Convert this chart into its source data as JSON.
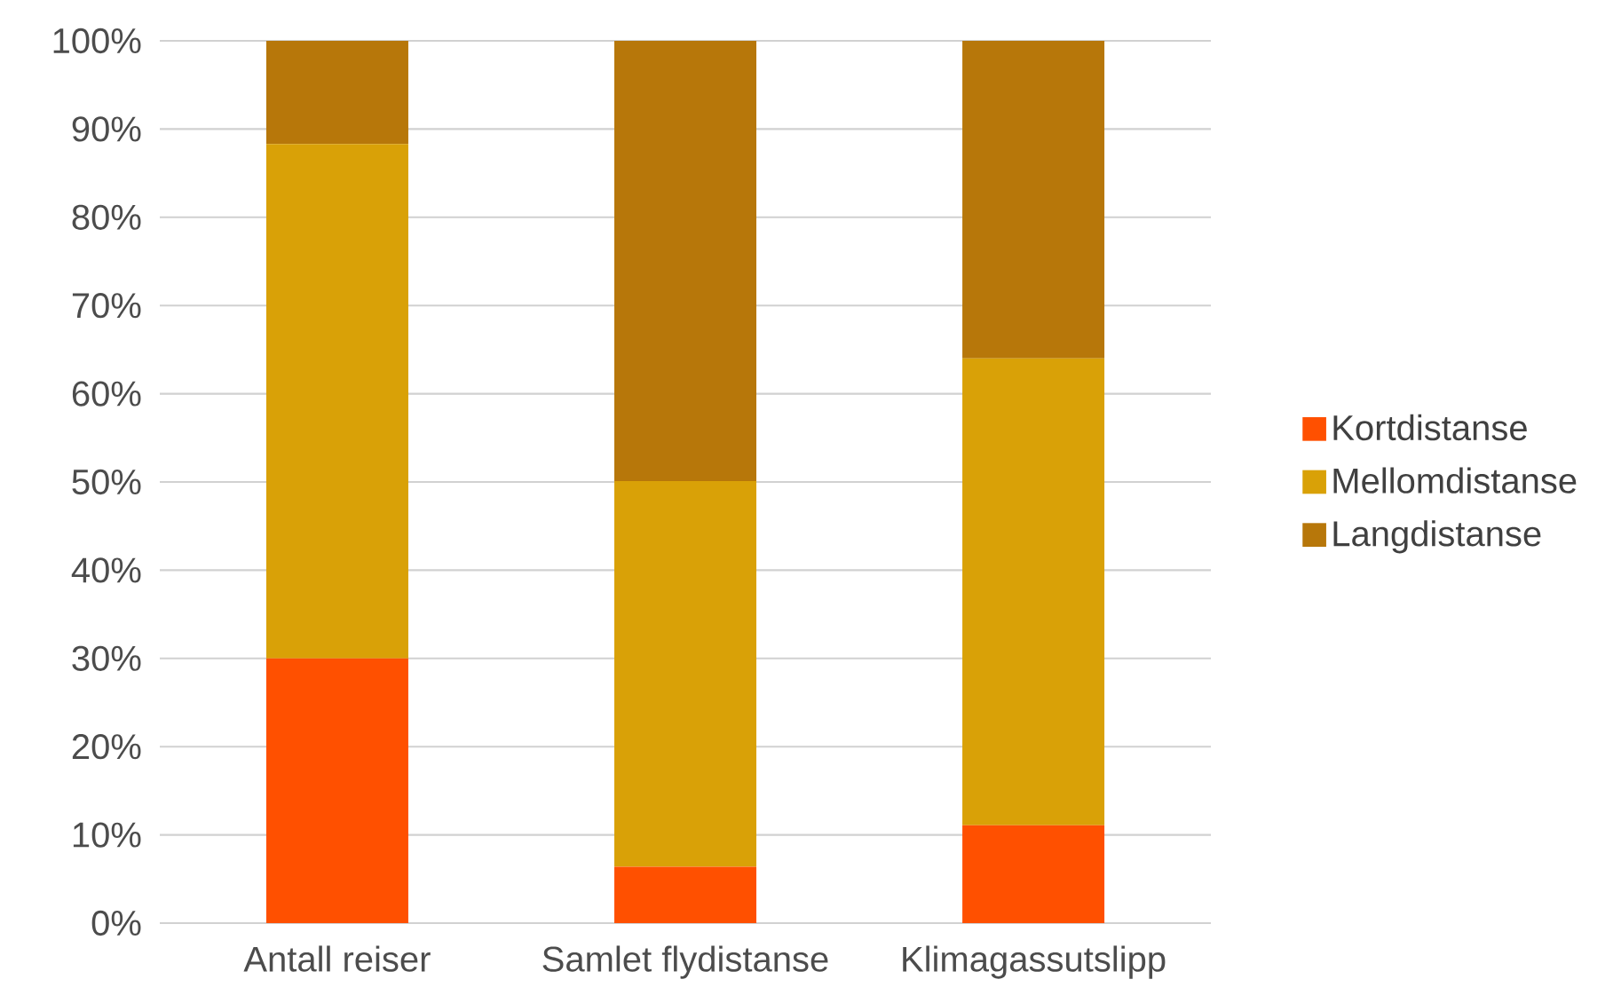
{
  "chart_data": {
    "type": "bar",
    "stacked": true,
    "categories": [
      "Antall reiser",
      "Samlet flydistanse",
      "Klimagassutslipp"
    ],
    "series": [
      {
        "name": "Kortdistanse",
        "color": "#ff5000",
        "values": [
          30,
          6.4,
          11.1
        ]
      },
      {
        "name": "Mellomdistanse",
        "color": "#d9a107",
        "values": [
          58.3,
          43.7,
          52.9
        ]
      },
      {
        "name": "Langdistanse",
        "color": "#b7770a",
        "values": [
          11.7,
          49.9,
          36
        ]
      }
    ],
    "ylim": [
      0,
      100
    ],
    "yticks": [
      {
        "value": 0,
        "label": "0%"
      },
      {
        "value": 10,
        "label": "10%"
      },
      {
        "value": 20,
        "label": "20%"
      },
      {
        "value": 30,
        "label": "30%"
      },
      {
        "value": 40,
        "label": "40%"
      },
      {
        "value": 50,
        "label": "50%"
      },
      {
        "value": 60,
        "label": "60%"
      },
      {
        "value": 70,
        "label": "70%"
      },
      {
        "value": 80,
        "label": "80%"
      },
      {
        "value": 90,
        "label": "90%"
      },
      {
        "value": 100,
        "label": "100%"
      }
    ],
    "grid": "y",
    "legend": "right"
  }
}
